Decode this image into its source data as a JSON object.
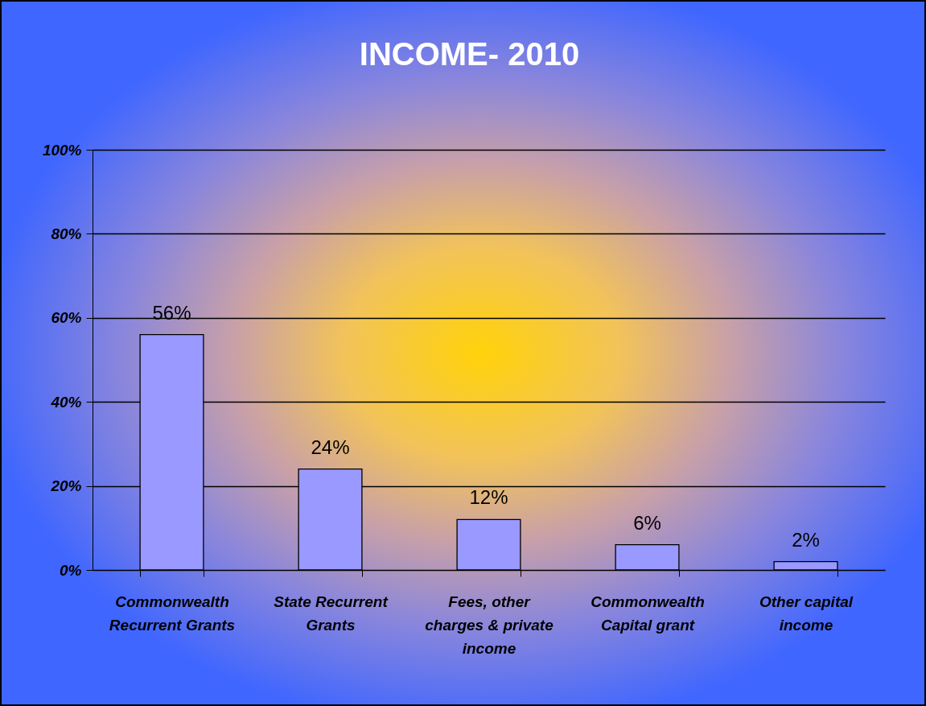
{
  "chart_data": {
    "type": "bar",
    "title": "INCOME- 2010",
    "categories": [
      "Commonwealth Recurrent Grants",
      "State Recurrent Grants",
      "Fees, other charges & private income",
      "Commonwealth Capital grant",
      "Other capital income"
    ],
    "values": [
      56,
      24,
      12,
      6,
      2
    ],
    "value_labels": [
      "56%",
      "24%",
      "12%",
      "6%",
      "2%"
    ],
    "color": "#9999ff",
    "ylim": [
      0,
      100
    ],
    "yticks": [
      {
        "value": 0,
        "label": "0%"
      },
      {
        "value": 20,
        "label": "20%"
      },
      {
        "value": 40,
        "label": "40%"
      },
      {
        "value": 60,
        "label": "60%"
      },
      {
        "value": 80,
        "label": "80%"
      },
      {
        "value": 100,
        "label": "100%"
      }
    ],
    "grid": "y"
  }
}
